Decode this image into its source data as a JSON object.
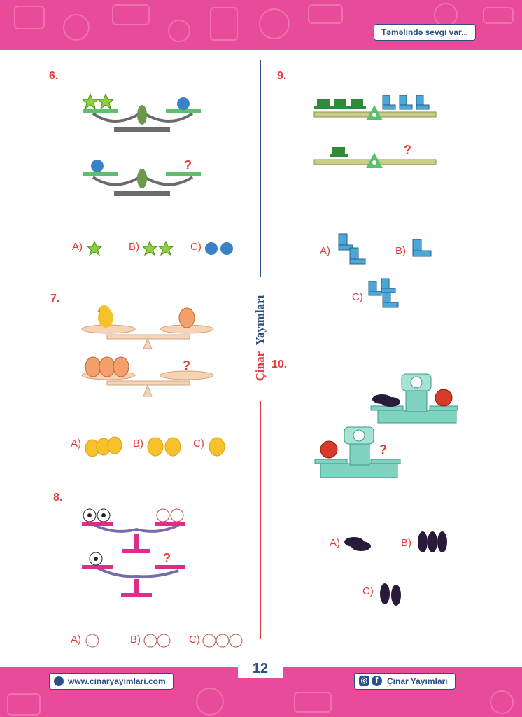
{
  "header": {
    "slogan": "Təməlində sevgi var..."
  },
  "footer": {
    "website": "www.cinaryayimlari.com",
    "social": "Çinar Yayımları",
    "page_number": "12"
  },
  "sidebar": {
    "brand_first": "Çinar",
    "brand_second": "Yayımları"
  },
  "questions": [
    {
      "number": "6.",
      "options": [
        "A)",
        "B)",
        "C)"
      ]
    },
    {
      "number": "7.",
      "options": [
        "A)",
        "B)",
        "C)"
      ]
    },
    {
      "number": "8.",
      "options": [
        "A)",
        "B)",
        "C)"
      ]
    },
    {
      "number": "9.",
      "options": [
        "A)",
        "B)",
        "C)"
      ]
    },
    {
      "number": "10.",
      "options": [
        "A)",
        "B)",
        "C)"
      ]
    }
  ],
  "unknown_mark": "?"
}
